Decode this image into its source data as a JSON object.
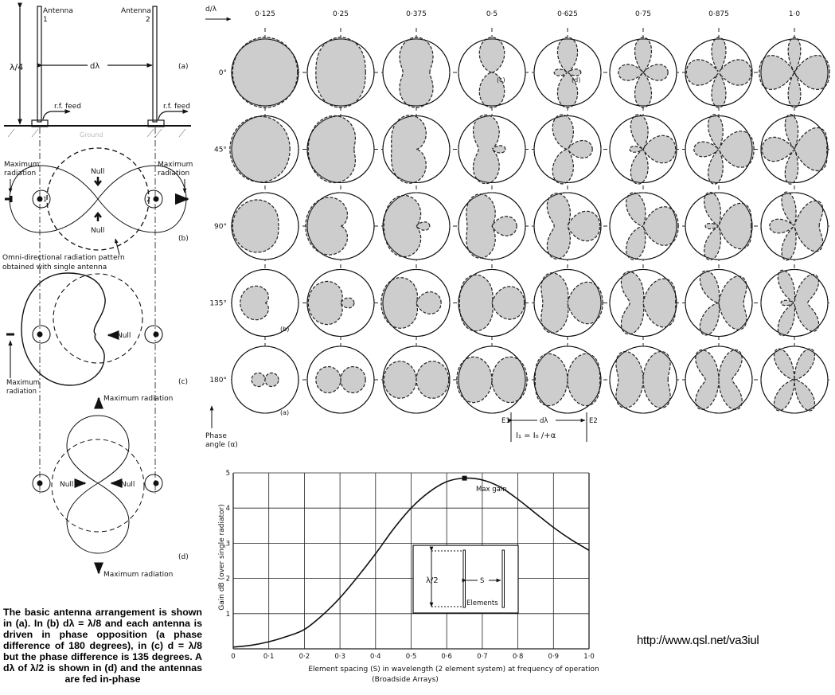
{
  "left_figure": {
    "a": {
      "antenna1": [
        "Antenna",
        "1"
      ],
      "antenna2": [
        "Antenna",
        "2"
      ],
      "height_label": "λ/4",
      "spacing_label": "dλ",
      "feed_label": "r.f. feed",
      "ground_label": "Ground",
      "tag": "(a)"
    },
    "b": {
      "max_rad": [
        "Maximum",
        "radiation"
      ],
      "null_label": "Null",
      "tag": "(b)",
      "omni_note": [
        "Omni-directional radiation pattern",
        "obtained with single antenna"
      ],
      "ant1": "1",
      "ant2": "2"
    },
    "c": {
      "null_label": "Null",
      "max_rad": [
        "Maximum",
        "radiation"
      ],
      "tag": "(c)"
    },
    "d": {
      "max_rad": "Maximum radiation",
      "null_label": "Null",
      "tag": "(d)"
    }
  },
  "caption": "The basic antenna arrangement is shown in (a). In (b) dλ = λ/8 and each antenna is driven in phase opposition (a phase difference of 180 degrees), in (c) d = λ/8 but the phase difference is 135 degrees. A dλ of λ/2 is shown in (d) and the antennas are fed in-phase",
  "pattern_grid": {
    "spacing_header": "d/λ",
    "columns": [
      {
        "label": "0·125",
        "d": 0.125
      },
      {
        "label": "0·25",
        "d": 0.25
      },
      {
        "label": "0·375",
        "d": 0.375
      },
      {
        "label": "0·5",
        "d": 0.5
      },
      {
        "label": "0·625",
        "d": 0.625
      },
      {
        "label": "0·75",
        "d": 0.75
      },
      {
        "label": "0·875",
        "d": 0.875
      },
      {
        "label": "1·0",
        "d": 1.0
      }
    ],
    "rows": [
      {
        "label": "0°",
        "phase": 0
      },
      {
        "label": "45°",
        "phase": 45
      },
      {
        "label": "90°",
        "phase": 90
      },
      {
        "label": "135°",
        "phase": 135
      },
      {
        "label": "180°",
        "phase": 180
      }
    ],
    "tags": {
      "c": "(c)",
      "d": "(d)",
      "b": "(b)",
      "a": "(a)"
    },
    "phase_axis": [
      "Phase",
      "angle (α)"
    ],
    "legend": {
      "e1": "E1",
      "e2": "E2",
      "spacing": "dλ",
      "current": "I₁ = I₀ /+α"
    },
    "fill_color": "#c8c8c8"
  },
  "chart_data": {
    "type": "line",
    "title": "",
    "xlabel": "Element spacing (S) in wavelength (2 element system) at frequency of operation",
    "xlabel2": "(Broadside Arrays)",
    "ylabel": "Gain dB (over single radiator)",
    "xlim": [
      0,
      1.0
    ],
    "ylim": [
      0,
      5
    ],
    "grid": true,
    "x_ticks": [
      "0",
      "0·1",
      "0·2",
      "0·3",
      "0·4",
      "0·5",
      "0·6",
      "0·7",
      "0·8",
      "0·9",
      "1·0"
    ],
    "y_ticks": [
      "1",
      "2",
      "3",
      "4",
      "5"
    ],
    "x": [
      0,
      0.05,
      0.1,
      0.15,
      0.2,
      0.25,
      0.3,
      0.35,
      0.4,
      0.45,
      0.5,
      0.55,
      0.6,
      0.65,
      0.7,
      0.75,
      0.8,
      0.85,
      0.9,
      0.95,
      1.0
    ],
    "y": [
      0.05,
      0.1,
      0.2,
      0.35,
      0.55,
      0.95,
      1.45,
      2.05,
      2.7,
      3.4,
      4.0,
      4.45,
      4.75,
      4.85,
      4.8,
      4.6,
      4.25,
      3.85,
      3.45,
      3.1,
      2.8
    ],
    "annotation": {
      "label": "Max gain",
      "x": 0.65,
      "y": 4.85
    },
    "inset": {
      "height_label": "λ/2",
      "spacing_label": "S",
      "elements_label": "Elements"
    }
  },
  "url": "http://www.qsl.net/va3iul"
}
